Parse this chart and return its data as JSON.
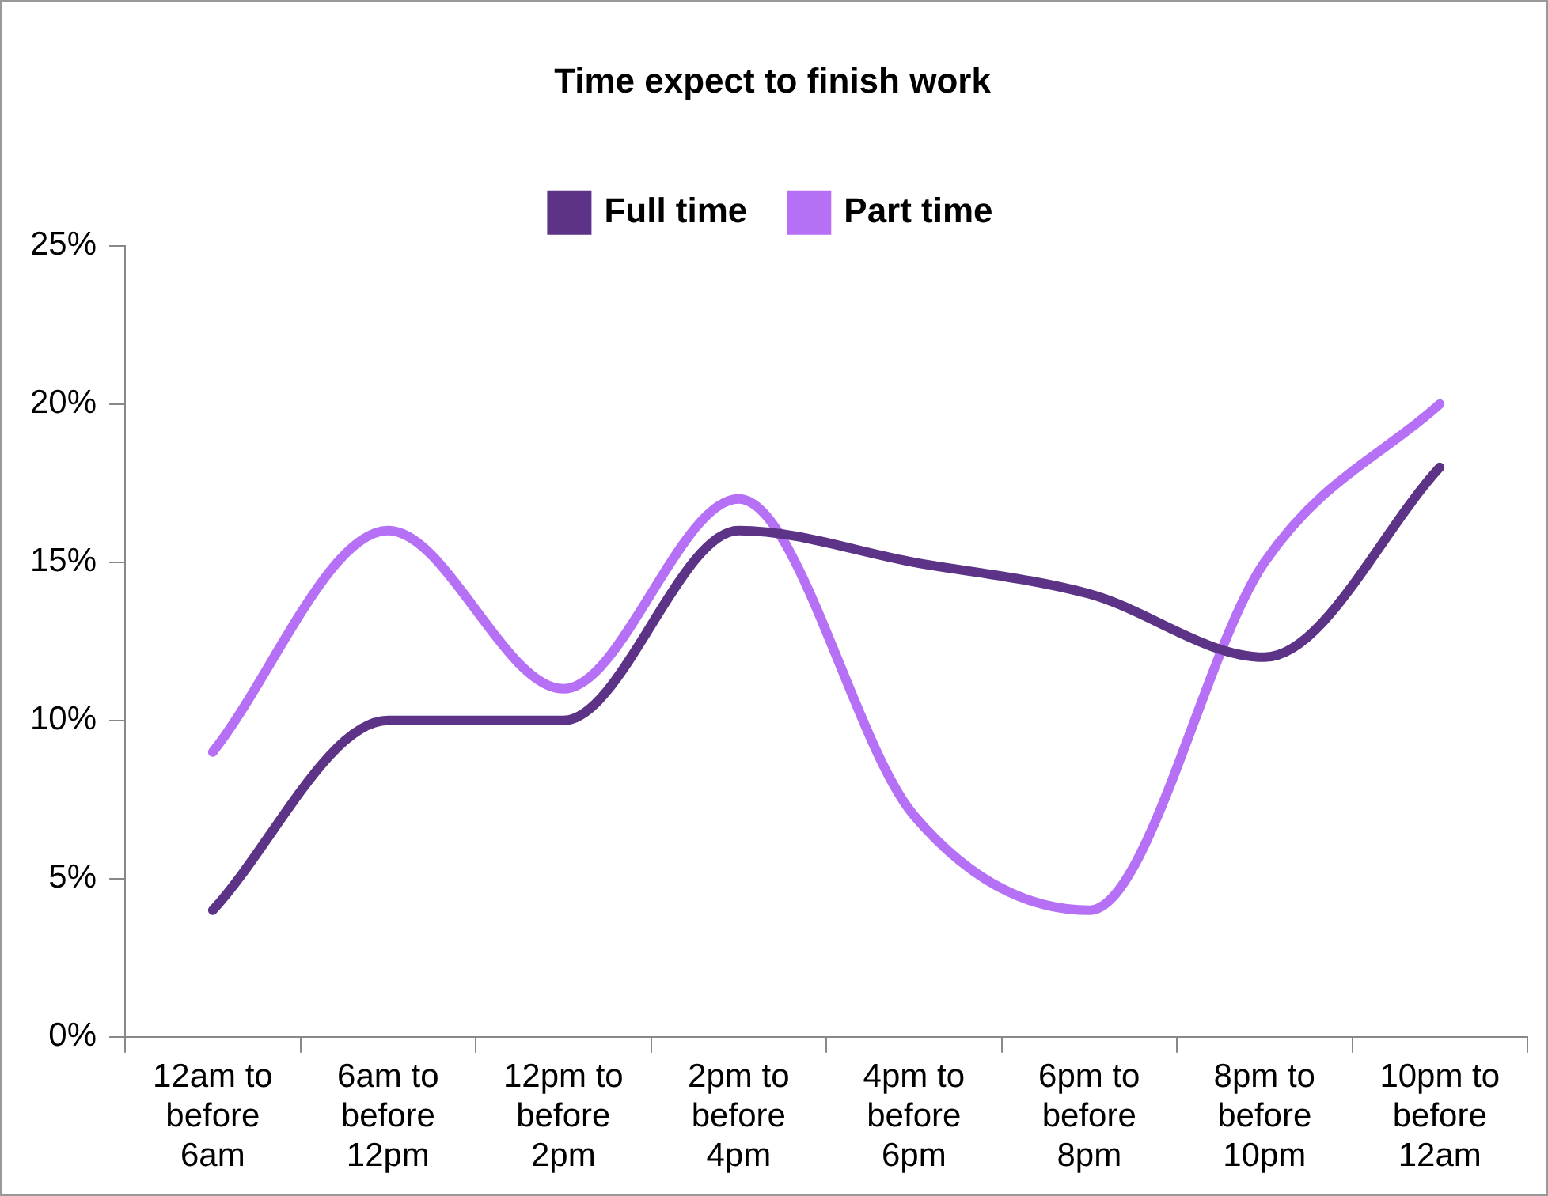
{
  "chart_data": {
    "type": "line",
    "title": "Time expect to finish work",
    "categories": [
      "12am to before 6am",
      "6am to before 12pm",
      "12pm to before 2pm",
      "2pm to before 4pm",
      "4pm to before 6pm",
      "6pm to before 8pm",
      "8pm to before 10pm",
      "10pm to before 12am"
    ],
    "series": [
      {
        "name": "Full time",
        "color": "#5c3386",
        "values": [
          4,
          10,
          10,
          16,
          15,
          14,
          12,
          18
        ]
      },
      {
        "name": "Part time",
        "color": "#b570f5",
        "values": [
          9,
          16,
          11,
          17,
          7,
          4,
          15,
          20
        ]
      }
    ],
    "ylim": [
      0,
      25
    ],
    "yticks": [
      {
        "value": 0,
        "label": "0%"
      },
      {
        "value": 5,
        "label": "5%"
      },
      {
        "value": 10,
        "label": "10%"
      },
      {
        "value": 15,
        "label": "15%"
      },
      {
        "value": 20,
        "label": "20%"
      },
      {
        "value": 25,
        "label": "25%"
      }
    ],
    "grid": false,
    "legend": "top",
    "marker": "none",
    "line_style": "solid"
  }
}
